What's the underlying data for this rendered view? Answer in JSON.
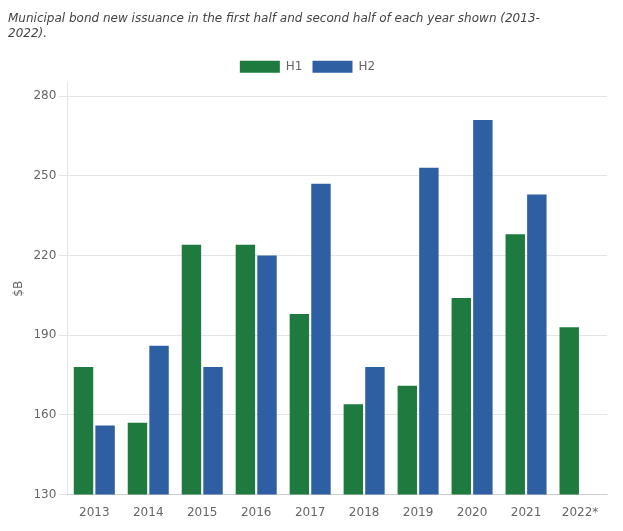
{
  "chart_data": {
    "type": "bar",
    "subtitle": "Municipal bond new issuance in the first half and second half of each year shown (2013-\n2022).",
    "categories": [
      "2013",
      "2014",
      "2015",
      "2016",
      "2017",
      "2018",
      "2019",
      "2020",
      "2021",
      "2022*"
    ],
    "series": [
      {
        "name": "H1",
        "color": "#1e7a3e",
        "values": [
          178,
          157,
          224,
          224,
          198,
          164,
          171,
          204,
          228,
          193
        ]
      },
      {
        "name": "H2",
        "color": "#2e5fa3",
        "values": [
          156,
          186,
          178,
          220,
          247,
          178,
          253,
          271,
          243,
          null
        ]
      }
    ],
    "ylabel": "$B",
    "ylim": [
      130,
      285
    ],
    "yticks": [
      130,
      160,
      190,
      220,
      250,
      280
    ],
    "grid": "y",
    "legend": "top"
  }
}
